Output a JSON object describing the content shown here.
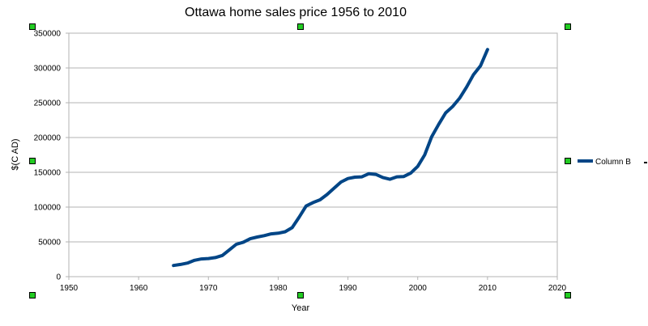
{
  "chart_data": {
    "type": "line",
    "title": "Ottawa home sales price 1956 to 2010",
    "xlabel": "Year",
    "ylabel": "$(C AD)",
    "xlim": [
      1950,
      2020
    ],
    "ylim": [
      0,
      350000
    ],
    "x_ticks": [
      "1950",
      "1960",
      "1970",
      "1980",
      "1990",
      "2000",
      "2010",
      "2020"
    ],
    "y_ticks": [
      "0",
      "50000",
      "100000",
      "150000",
      "200000",
      "250000",
      "300000",
      "350000"
    ],
    "grid": true,
    "legend_position": "right",
    "series": [
      {
        "name": "Column B",
        "color": "#004586",
        "x": [
          1965,
          1966,
          1967,
          1968,
          1969,
          1970,
          1971,
          1972,
          1973,
          1974,
          1975,
          1976,
          1977,
          1978,
          1979,
          1980,
          1981,
          1982,
          1983,
          1984,
          1985,
          1986,
          1987,
          1988,
          1989,
          1990,
          1991,
          1992,
          1993,
          1994,
          1995,
          1996,
          1997,
          1998,
          1999,
          2000,
          2001,
          2002,
          2003,
          2004,
          2005,
          2006,
          2007,
          2008,
          2009,
          2010
        ],
        "y": [
          16000,
          17500,
          19500,
          23500,
          25500,
          26000,
          27500,
          30500,
          38500,
          46500,
          49500,
          54500,
          57000,
          59000,
          61500,
          62500,
          64500,
          70500,
          85500,
          101500,
          106500,
          110500,
          118000,
          127000,
          136000,
          141000,
          143000,
          143500,
          148000,
          147000,
          142500,
          140000,
          143500,
          144000,
          149000,
          158500,
          175000,
          201000,
          219000,
          235500,
          244500,
          256500,
          272500,
          290500,
          303000,
          326500
        ]
      }
    ]
  }
}
